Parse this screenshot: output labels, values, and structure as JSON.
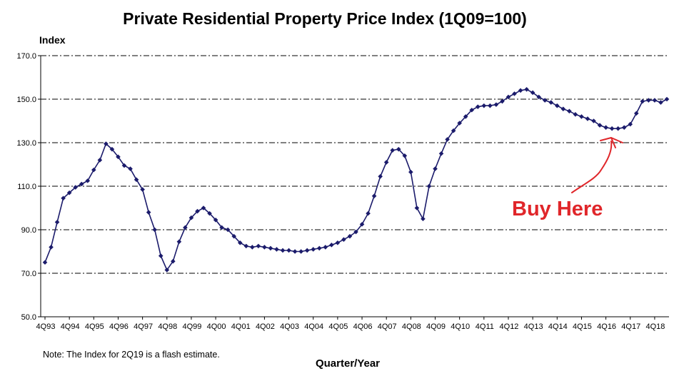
{
  "chart_data": {
    "type": "line",
    "title": "Private Residential Property Price Index (1Q09=100)",
    "ylabel": "Index",
    "xlabel": "Quarter/Year",
    "ylim": [
      50,
      170
    ],
    "yticks": [
      "50.0",
      "70.0",
      "90.0",
      "110.0",
      "130.0",
      "150.0",
      "170.0"
    ],
    "grid": "horizontal dashed",
    "legend": "none",
    "x_tick_labels": [
      "4Q93",
      "4Q94",
      "4Q95",
      "4Q96",
      "4Q97",
      "4Q98",
      "4Q99",
      "4Q00",
      "4Q01",
      "4Q02",
      "4Q03",
      "4Q04",
      "4Q05",
      "4Q06",
      "4Q07",
      "4Q08",
      "4Q09",
      "4Q10",
      "4Q11",
      "4Q12",
      "4Q13",
      "4Q14",
      "4Q15",
      "4Q16",
      "4Q17",
      "4Q18"
    ],
    "x_start": "4Q93",
    "series": [
      {
        "color": "#1b1b6b",
        "marker": "diamond",
        "values": [
          75.0,
          82.0,
          93.5,
          104.5,
          107.0,
          109.5,
          111.0,
          112.5,
          117.5,
          122.0,
          129.5,
          127.0,
          123.5,
          119.5,
          118.0,
          113.0,
          108.5,
          98.0,
          90.0,
          78.0,
          71.5,
          75.5,
          84.5,
          91.0,
          95.5,
          98.5,
          100.0,
          97.5,
          94.5,
          91.0,
          90.0,
          87.0,
          84.0,
          82.5,
          82.0,
          82.5,
          82.0,
          81.5,
          81.0,
          80.5,
          80.5,
          80.0,
          80.0,
          80.5,
          81.0,
          81.5,
          82.0,
          83.0,
          84.0,
          85.5,
          87.0,
          89.0,
          92.5,
          97.5,
          105.5,
          114.5,
          121.0,
          126.5,
          127.0,
          124.0,
          116.5,
          100.0,
          95.0,
          110.0,
          118.0,
          125.0,
          131.5,
          135.5,
          139.0,
          142.0,
          145.0,
          146.5,
          147.0,
          147.0,
          147.5,
          149.0,
          151.0,
          152.5,
          154.0,
          154.5,
          153.0,
          151.0,
          149.5,
          148.5,
          147.0,
          145.5,
          144.5,
          143.0,
          142.0,
          141.0,
          140.0,
          138.0,
          137.0,
          136.5,
          136.5,
          137.0,
          138.5,
          143.5,
          149.0,
          149.5,
          149.5,
          148.5,
          150.0
        ]
      }
    ],
    "note": "Note: The Index for 2Q19 is a flash estimate.",
    "annotation": "Buy Here",
    "annotation_color": "#e0262a"
  }
}
